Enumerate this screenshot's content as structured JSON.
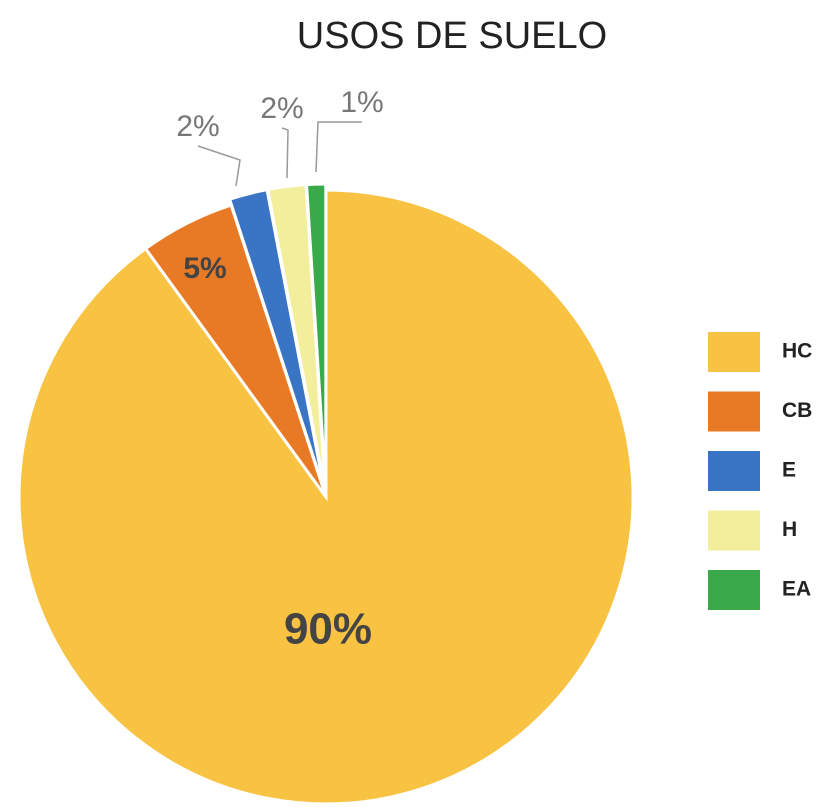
{
  "chart_data": {
    "type": "pie",
    "title": "USOS DE SUELO",
    "categories": [
      "HC",
      "CB",
      "E",
      "H",
      "EA"
    ],
    "values": [
      90,
      5,
      2,
      2,
      1
    ],
    "value_labels": [
      "90%",
      "5%",
      "2%",
      "2%",
      "1%"
    ],
    "colors": [
      "#F8C242",
      "#E97A25",
      "#3A74C4",
      "#F3EE9C",
      "#3AA94A"
    ],
    "legend": "right"
  }
}
